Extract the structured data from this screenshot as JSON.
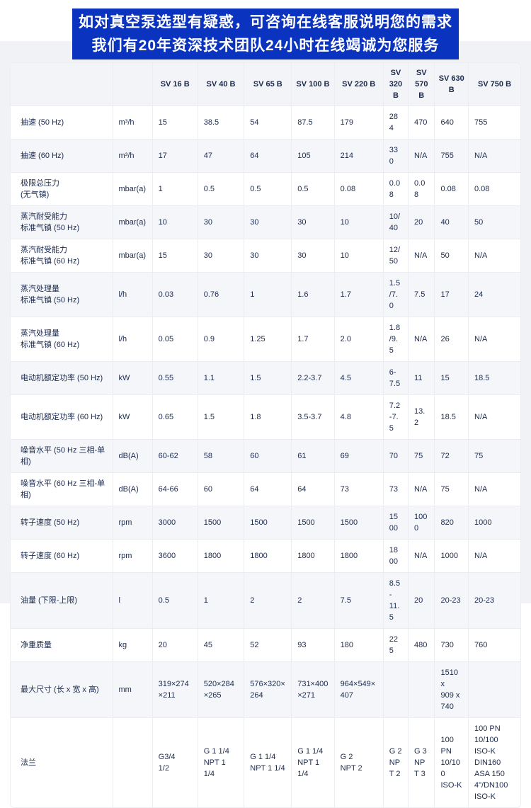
{
  "banner": {
    "line1": "如对真空泵选型有疑惑，可咨询在线客服说明您的需求",
    "line2": "我们有20年资深技术团队24小时在线竭诚为您服务"
  },
  "colors": {
    "banner_bg": "#0a33c0",
    "banner_text": "#ffffff",
    "page_bg": "#f1f2f6",
    "card_bg": "#ffffff",
    "row_alt_bg": "#f5f6f9",
    "header_bg": "#f3f4f8",
    "text": "#1b2a4e",
    "border": "#ebedf2"
  },
  "table": {
    "columns": [
      "",
      "",
      "SV 16 B",
      "SV 40 B",
      "SV 65 B",
      "SV 100 B",
      "SV 220 B",
      "SV 320 B",
      "SV 570 B",
      "SV 630 B",
      "SV 750 B"
    ],
    "col_widths": [
      "20.0%",
      "7.8%",
      "8.9%",
      "9.1%",
      "9.3%",
      "8.4%",
      "9.6%",
      "4.9%",
      "5.2%",
      "6.6%",
      "10.2%"
    ],
    "rows": [
      {
        "label": "抽速 (50 Hz)",
        "unit": "m³/h",
        "values": [
          "15",
          "38.5",
          "54",
          "87.5",
          "179",
          "284",
          "470",
          "640",
          "755"
        ]
      },
      {
        "label": "抽速 (60 Hz)",
        "unit": "m³/h",
        "values": [
          "17",
          "47",
          "64",
          "105",
          "214",
          "330",
          "N/A",
          "755",
          "N/A"
        ]
      },
      {
        "label": "极限总压力\n(无气镇)",
        "unit": "mbar(a)",
        "values": [
          "1",
          "0.5",
          "0.5",
          "0.5",
          "0.08",
          "0.08",
          "0.08",
          "0.08",
          "0.08"
        ]
      },
      {
        "label": "蒸汽耐受能力\n标准气镇 (50 Hz)",
        "unit": "mbar(a)",
        "values": [
          "10",
          "30",
          "30",
          "30",
          "10",
          "10/40",
          "20",
          "40",
          "50"
        ]
      },
      {
        "label": "蒸汽耐受能力\n标准气镇 (60 Hz)",
        "unit": "mbar(a)",
        "values": [
          "15",
          "30",
          "30",
          "30",
          "10",
          "12/50",
          "N/A",
          "50",
          "N/A"
        ]
      },
      {
        "label": "蒸汽处理量\n标准气镇 (50 Hz)",
        "unit": "l/h",
        "values": [
          "0.03",
          "0.76",
          "1",
          "1.6",
          "1.7",
          "1.5/7.0",
          "7.5",
          "17",
          "24"
        ]
      },
      {
        "label": "蒸汽处理量\n标准气镇 (60 Hz)",
        "unit": "l/h",
        "values": [
          "0.05",
          "0.9",
          "1.25",
          "1.7",
          "2.0",
          "1.8/9.5",
          "N/A",
          "26",
          "N/A"
        ]
      },
      {
        "label": "电动机额定功率 (50 Hz)",
        "unit": "kW",
        "values": [
          "0.55",
          "1.1",
          "1.5",
          "2.2-3.7",
          "4.5",
          "6-7.5",
          "11",
          "15",
          "18.5"
        ]
      },
      {
        "label": "电动机额定功率 (60 Hz)",
        "unit": "kW",
        "values": [
          "0.65",
          "1.5",
          "1.8",
          "3.5-3.7",
          "4.8",
          "7.2-7.5",
          "13.2",
          "18.5",
          "N/A"
        ]
      },
      {
        "label": "噪音水平  (50 Hz 三相-单相)",
        "unit": "dB(A)",
        "values": [
          "60-62",
          "58",
          "60",
          "61",
          "69",
          "70",
          "75",
          "72",
          "75"
        ]
      },
      {
        "label": "噪音水平  (60 Hz 三相-单相)",
        "unit": "dB(A)",
        "values": [
          "64-66",
          "60",
          "64",
          "64",
          "73",
          "73",
          "N/A",
          "75",
          "N/A"
        ]
      },
      {
        "label": "转子速度 (50 Hz)",
        "unit": "rpm",
        "values": [
          "3000",
          "1500",
          "1500",
          "1500",
          "1500",
          "1500",
          "1000",
          "820",
          "1000"
        ]
      },
      {
        "label": "转子速度 (60 Hz)",
        "unit": "rpm",
        "values": [
          "3600",
          "1800",
          "1800",
          "1800",
          "1800",
          "1800",
          "N/A",
          "1000",
          "N/A"
        ]
      },
      {
        "label": "油量 (下限-上限)",
        "unit": "l",
        "values": [
          "0.5",
          "1",
          "2",
          "2",
          "7.5",
          "8.5-\n11.5",
          "20",
          "20-23",
          "20-23"
        ]
      },
      {
        "label": "净重质量",
        "unit": "kg",
        "values": [
          "20",
          "45",
          "52",
          "93",
          "180",
          "225",
          "480",
          "730",
          "760"
        ]
      },
      {
        "label": "最大尺寸 (长 x 宽 x 高)",
        "unit": "mm",
        "values": [
          "319×274×211",
          "520×284×265",
          "576×320×264",
          "731×400×271",
          "964×549×407",
          "",
          "",
          "1510 x\n909 x\n740",
          ""
        ]
      },
      {
        "label": "法兰",
        "unit": "",
        "values": [
          "G3/4\n1/2",
          "G 1 1/4\nNPT 1 1/4",
          "G 1 1/4\nNPT 1 1/4",
          "G 1 1/4\nNPT 1 1/4",
          "G 2\nNPT 2",
          "G 2\nNPT 2",
          "G 3\nNPT 3",
          "100 PN\n10/100\nISO-K",
          "100 PN 10/100\nISO-K\nDIN160\nASA 150\n4\"/DN100 ISO-K"
        ]
      }
    ]
  }
}
